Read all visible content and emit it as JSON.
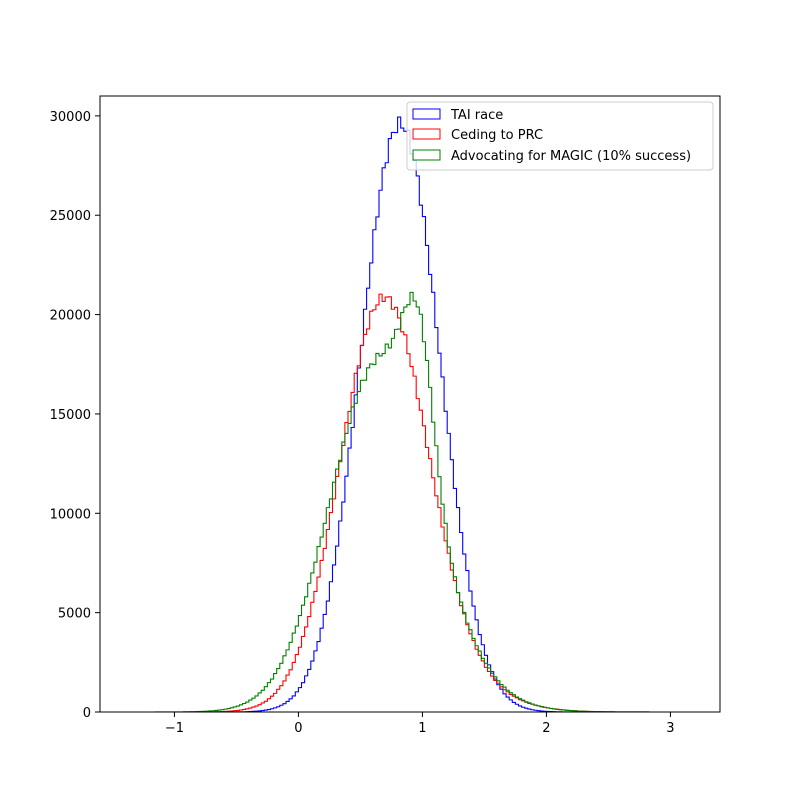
{
  "chart_data": {
    "type": "histogram",
    "title": "",
    "xlabel": "",
    "ylabel": "",
    "xlim": [
      -1.6,
      3.4
    ],
    "ylim": [
      0,
      31000
    ],
    "xticks": [
      -1,
      0,
      1,
      2,
      3
    ],
    "xtick_labels": [
      "−1",
      "0",
      "1",
      "2",
      "3"
    ],
    "yticks": [
      0,
      5000,
      10000,
      15000,
      20000,
      25000,
      30000
    ],
    "ytick_labels": [
      "0",
      "5000",
      "10000",
      "15000",
      "20000",
      "25000",
      "30000"
    ],
    "grid": false,
    "legend_position": "top-right",
    "legend_style": "open rectangles",
    "x_range": [
      -1.4,
      3.2
    ],
    "bin_width": 0.025,
    "series": [
      {
        "name": "TAI race",
        "color": "#0000ff",
        "distribution": "approximately normal",
        "mean": 0.82,
        "sd": 0.32,
        "peak": 29600
      },
      {
        "name": "Ceding to PRC",
        "color": "#ff0000",
        "peak": 20600,
        "components": [
          {
            "mean": 0.68,
            "sd": 0.35,
            "peak": 19500
          },
          {
            "mean": 1.05,
            "sd": 0.45,
            "peak": 1900
          }
        ]
      },
      {
        "name": "Advocating for MAGIC (10% success)",
        "color": "#008000",
        "peak": 21500,
        "components": [
          {
            "mean": 0.65,
            "sd": 0.4,
            "peak": 17000
          },
          {
            "mean": 0.97,
            "sd": 0.12,
            "peak": 6800
          },
          {
            "mean": 1.1,
            "sd": 0.45,
            "peak": 1200
          }
        ]
      }
    ]
  }
}
